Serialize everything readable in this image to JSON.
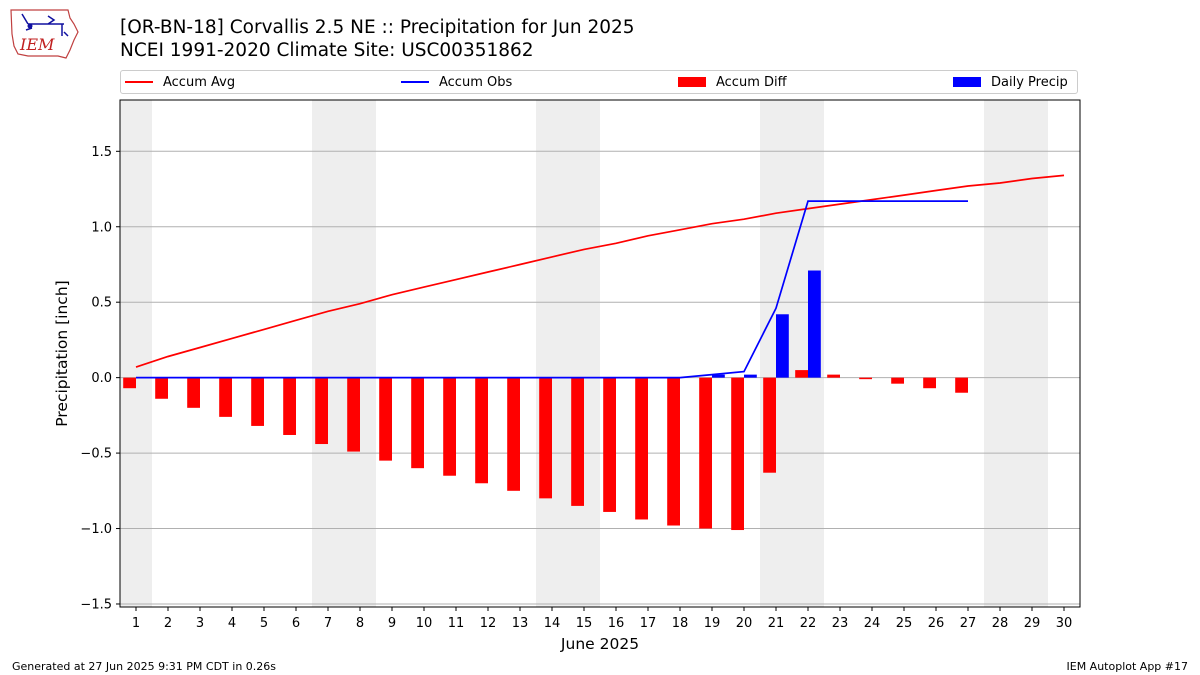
{
  "logo": {
    "text": "IEM",
    "icon": "iowa-state-iem-logo"
  },
  "header": {
    "title": "[OR-BN-18] Corvallis 2.5 NE :: Precipitation for Jun 2025",
    "subtitle": "NCEI 1991-2020 Climate Site: USC00351862"
  },
  "legend": {
    "items": [
      {
        "label": "Accum Avg",
        "kind": "line",
        "color": "#ff0000"
      },
      {
        "label": "Accum Obs",
        "kind": "line",
        "color": "#0000ff"
      },
      {
        "label": "Accum Diff",
        "kind": "box",
        "color": "#ff0000"
      },
      {
        "label": "Daily Precip",
        "kind": "box",
        "color": "#0000ff"
      }
    ]
  },
  "footer": {
    "left": "Generated at 27 Jun 2025 9:31 PM CDT in 0.26s",
    "right": "IEM Autoplot App #17"
  },
  "colors": {
    "avg": "#ff0000",
    "obs": "#0000ff",
    "diff": "#ff0000",
    "daily": "#0000ff",
    "weekend": "#eeeeee",
    "grid": "#b0b0b0"
  },
  "chart_data": {
    "type": "bar",
    "xlabel": "June 2025",
    "ylabel": "Precipitation [inch]",
    "xlim": [
      0.5,
      30.5
    ],
    "ylim": [
      -1.52,
      1.84
    ],
    "y_ticks": [
      -1.5,
      -1.0,
      -0.5,
      0.0,
      0.5,
      1.0,
      1.5
    ],
    "y_tick_labels": [
      "−1.5",
      "−1.0",
      "−0.5",
      "0.0",
      "0.5",
      "1.0",
      "1.5"
    ],
    "x_ticks": [
      1,
      2,
      3,
      4,
      5,
      6,
      7,
      8,
      9,
      10,
      11,
      12,
      13,
      14,
      15,
      16,
      17,
      18,
      19,
      20,
      21,
      22,
      23,
      24,
      25,
      26,
      27,
      28,
      29,
      30
    ],
    "grid": "horizontal",
    "legend_position": "top",
    "weekend_bands": [
      [
        0.5,
        1.5
      ],
      [
        6.5,
        8.5
      ],
      [
        13.5,
        15.5
      ],
      [
        20.5,
        22.5
      ],
      [
        27.5,
        29.5
      ]
    ],
    "series": [
      {
        "name": "Accum Avg",
        "type": "line",
        "x": [
          1,
          2,
          3,
          4,
          5,
          6,
          7,
          8,
          9,
          10,
          11,
          12,
          13,
          14,
          15,
          16,
          17,
          18,
          19,
          20,
          21,
          22,
          23,
          24,
          25,
          26,
          27,
          28,
          29,
          30
        ],
        "values": [
          0.07,
          0.14,
          0.2,
          0.26,
          0.32,
          0.38,
          0.44,
          0.49,
          0.55,
          0.6,
          0.65,
          0.7,
          0.75,
          0.8,
          0.85,
          0.89,
          0.94,
          0.98,
          1.02,
          1.05,
          1.09,
          1.12,
          1.15,
          1.18,
          1.21,
          1.24,
          1.27,
          1.29,
          1.32,
          1.34
        ]
      },
      {
        "name": "Accum Obs",
        "type": "line",
        "x": [
          1,
          2,
          3,
          4,
          5,
          6,
          7,
          8,
          9,
          10,
          11,
          12,
          13,
          14,
          15,
          16,
          17,
          18,
          19,
          20,
          21,
          22,
          23,
          24,
          25,
          26,
          27
        ],
        "values": [
          0,
          0,
          0,
          0,
          0,
          0,
          0,
          0,
          0,
          0,
          0,
          0,
          0,
          0,
          0,
          0,
          0,
          0,
          0.02,
          0.04,
          0.46,
          1.17,
          1.17,
          1.17,
          1.17,
          1.17,
          1.17
        ]
      },
      {
        "name": "Accum Diff",
        "type": "bar",
        "x": [
          1,
          2,
          3,
          4,
          5,
          6,
          7,
          8,
          9,
          10,
          11,
          12,
          13,
          14,
          15,
          16,
          17,
          18,
          19,
          20,
          21,
          22,
          23,
          24,
          25,
          26,
          27
        ],
        "values": [
          -0.07,
          -0.14,
          -0.2,
          -0.26,
          -0.32,
          -0.38,
          -0.44,
          -0.49,
          -0.55,
          -0.6,
          -0.65,
          -0.7,
          -0.75,
          -0.8,
          -0.85,
          -0.89,
          -0.94,
          -0.98,
          -1.0,
          -1.01,
          -0.63,
          0.05,
          0.02,
          -0.01,
          -0.04,
          -0.07,
          -0.1
        ]
      },
      {
        "name": "Daily Precip",
        "type": "bar",
        "x": [
          19,
          20,
          21,
          22
        ],
        "values": [
          0.02,
          0.02,
          0.42,
          0.71
        ]
      }
    ]
  }
}
